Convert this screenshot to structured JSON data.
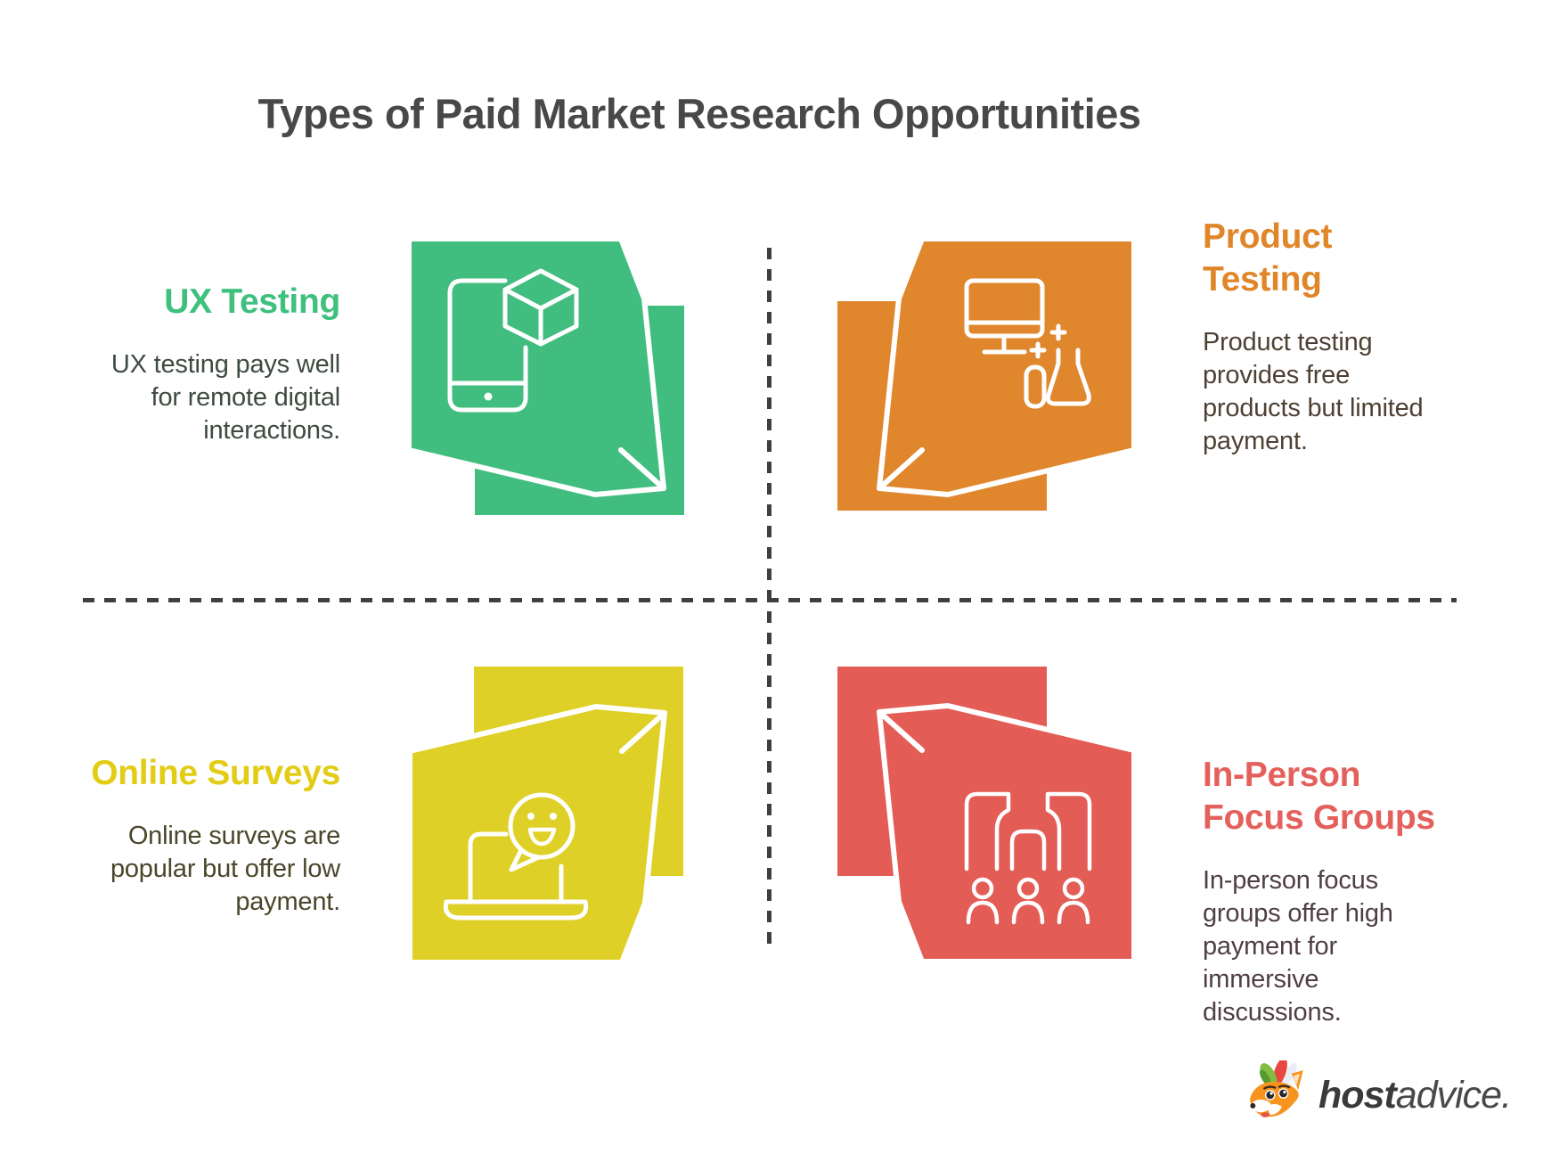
{
  "page": {
    "background": "#ffffff"
  },
  "title": {
    "text": "Types of Paid Market Research Opportunities",
    "color": "#484848"
  },
  "divider": {
    "color": "#3f3f3f"
  },
  "quadrants": [
    {
      "key": "ux-testing",
      "position": "top-left",
      "title": "UX Testing",
      "title_color": "#3fc07e",
      "box_color": "#41bd80",
      "desc_color": "#3e4b41",
      "description": "UX testing pays well for remote digital interactions.",
      "lines": [
        "UX testing pays well",
        "for remote digital",
        "interactions."
      ],
      "icon": "smartphone-ar-cube-icon"
    },
    {
      "key": "product-testing",
      "position": "top-right",
      "title": "Product Testing",
      "title_lines": [
        "Product",
        "Testing"
      ],
      "title_color": "#e08629",
      "box_color": "#e0862d",
      "desc_color": "#4e4134",
      "description": "Product testing provides free products but limited payment.",
      "lines": [
        "Product testing",
        "provides free",
        "products but limited",
        "payment."
      ],
      "icon": "desktop-lab-testing-icon"
    },
    {
      "key": "online-surveys",
      "position": "bottom-left",
      "title": "Online Surveys",
      "title_color": "#e3cc14",
      "box_color": "#ded026",
      "desc_color": "#4a462b",
      "description": "Online surveys are popular but offer low payment.",
      "lines": [
        "Online surveys are",
        "popular but offer low",
        "payment."
      ],
      "icon": "laptop-feedback-smiley-icon"
    },
    {
      "key": "in-person-focus-groups",
      "position": "bottom-right",
      "title": "In-Person Focus Groups",
      "title_lines": [
        "In-Person",
        "Focus Groups"
      ],
      "title_color": "#e4605c",
      "box_color": "#e35c55",
      "desc_color": "#4f3f45",
      "description": "In-person focus groups offer high payment for immersive discussions.",
      "lines": [
        "In-person focus",
        "groups offer high",
        "payment for",
        "immersive",
        "discussions."
      ],
      "icon": "focus-group-room-icon"
    }
  ],
  "logo": {
    "brand_bold": "host",
    "brand_light": "advice.",
    "icon": "fox-mascot-icon",
    "colors": {
      "text": "#3a3a3a",
      "fox_orange": "#f7941d",
      "leaf_green": "#83bc41",
      "leaf_dark_green": "#569b2f",
      "feather_red": "#e8473f",
      "feather_white": "#e8eef4"
    }
  }
}
